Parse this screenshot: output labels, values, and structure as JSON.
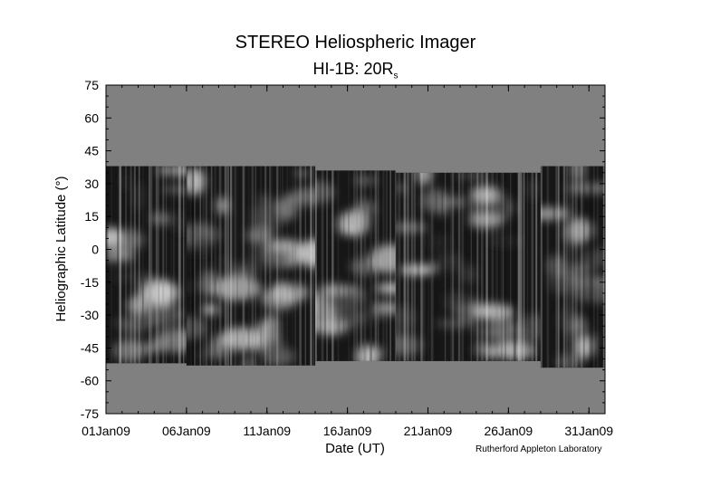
{
  "title": "STEREO Heliospheric Imager",
  "subtitle": {
    "main": "HI-1B: 20R",
    "sub": "s"
  },
  "credit": "Rutherford Appleton Laboratory",
  "colors": {
    "background_fill": "#808080",
    "axis": "#000000"
  },
  "chart_data": {
    "type": "heatmap",
    "colormap": "grayscale",
    "xlabel": "Date (UT)",
    "ylabel": "Heliographic Latitude (°)",
    "x_ticks": [
      "01Jan09",
      "06Jan09",
      "11Jan09",
      "16Jan09",
      "21Jan09",
      "26Jan09",
      "31Jan09"
    ],
    "xlim": [
      "2009-01-01",
      "2009-01-31"
    ],
    "y_ticks": [
      75,
      60,
      45,
      30,
      15,
      0,
      -15,
      -30,
      -45,
      -60,
      -75
    ],
    "ylim": [
      -75,
      75
    ],
    "data_coverage": [
      {
        "start": "2009-01-01",
        "end": "2009-01-06",
        "lat_top": 38,
        "lat_bottom": -52
      },
      {
        "start": "2009-01-06",
        "end": "2009-01-14",
        "lat_top": 38,
        "lat_bottom": -53
      },
      {
        "start": "2009-01-14",
        "end": "2009-01-19",
        "lat_top": 36,
        "lat_bottom": -51
      },
      {
        "start": "2009-01-19",
        "end": "2009-01-28",
        "lat_top": 35,
        "lat_bottom": -51
      },
      {
        "start": "2009-01-28",
        "end": "2009-01-31",
        "lat_top": 38,
        "lat_bottom": -54
      }
    ]
  }
}
